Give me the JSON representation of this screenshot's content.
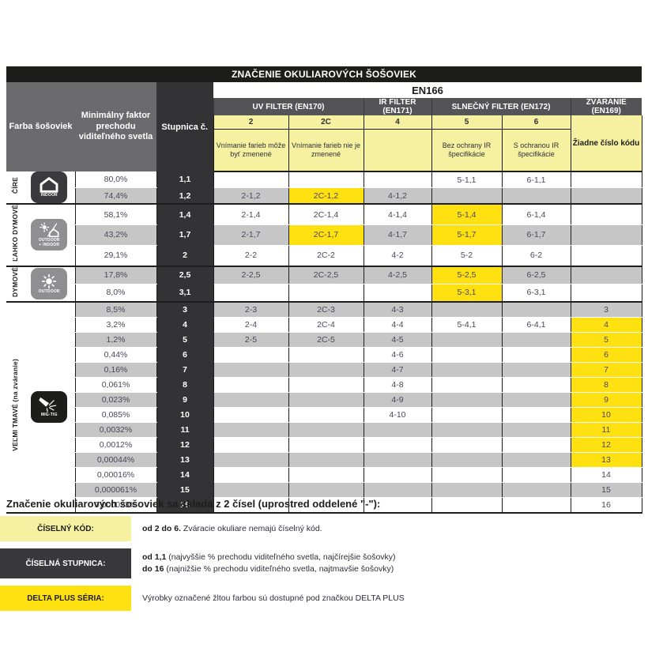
{
  "title": "ZNAČENIE OKULIAROVÝCH ŠOŠOVIEK",
  "standard": "EN166",
  "header": {
    "farba": "Farba šošoviek",
    "faktor": "Minimálny faktor prechodu viditeľného svetla",
    "stupnica": "Stupnica č.",
    "uv_filter": "UV FILTER (EN170)",
    "ir_filter": "IR FILTER (EN171)",
    "sun_filter": "SLNEČNÝ FILTER (EN172)",
    "welding": "ZVÁRANIE (EN169)",
    "code2": "2",
    "code2c": "2C",
    "code4": "4",
    "code5": "5",
    "code6": "6",
    "desc2": "Vnímanie farieb môže byť zmenené",
    "desc2c": "Vnímanie farieb nie je zmenené",
    "desc4": "",
    "desc5": "Bez ochrany IR špecifikácie",
    "desc6": "S ochranou IR špecifikácie",
    "welding_note": "Žiadne číslo kódu"
  },
  "colors": {
    "highlight_yellow": "#ffe112",
    "light_yellow": "#f6f1a1",
    "header_gray": "#6b6b6d",
    "group_header_gray": "#545456",
    "scale_dark": "#333335",
    "row_gray": "#c6c6c6",
    "black": "#1d1d1b"
  },
  "table": {
    "groups": [
      {
        "name": "ČÍRE",
        "icon": "indoor-icon",
        "icon_label": "INDOOR",
        "icon_bg": "#3a3a3c",
        "rows": [
          {
            "pct": "80,0%",
            "scale": "1,1",
            "c2": "",
            "c2c": "",
            "c4": "",
            "c5": "5-1,1",
            "c6": "6-1,1",
            "zv": "",
            "hl": []
          },
          {
            "pct": "74,4%",
            "scale": "1,2",
            "c2": "2-1,2",
            "c2c": "2C-1,2",
            "c4": "4-1,2",
            "c5": "",
            "c6": "",
            "zv": "",
            "hl": [
              "c2c"
            ]
          }
        ]
      },
      {
        "name": "ĽAHKO DYMOVÉ",
        "icon": "outdoor-indoor-icon",
        "icon_label": "OUTDOOR\n+ INDOOR",
        "icon_bg": "#8f8f91",
        "rows": [
          {
            "pct": "58,1%",
            "scale": "1,4",
            "c2": "2-1,4",
            "c2c": "2C-1,4",
            "c4": "4-1,4",
            "c5": "5-1,4",
            "c6": "6-1,4",
            "zv": "",
            "hl": [
              "c5"
            ]
          },
          {
            "pct": "43,2%",
            "scale": "1,7",
            "c2": "2-1,7",
            "c2c": "2C-1,7",
            "c4": "4-1,7",
            "c5": "5-1,7",
            "c6": "6-1,7",
            "zv": "",
            "hl": [
              "c2c",
              "c5"
            ]
          },
          {
            "pct": "29,1%",
            "scale": "2",
            "c2": "2-2",
            "c2c": "2C-2",
            "c4": "4-2",
            "c5": "5-2",
            "c6": "6-2",
            "zv": "",
            "hl": []
          }
        ]
      },
      {
        "name": "DYMOVÉ",
        "icon": "outdoor-icon",
        "icon_label": "OUTDOOR",
        "icon_bg": "#8f8f91",
        "rows": [
          {
            "pct": "17,8%",
            "scale": "2,5",
            "c2": "2-2,5",
            "c2c": "2C-2,5",
            "c4": "4-2,5",
            "c5": "5-2,5",
            "c6": "6-2,5",
            "zv": "",
            "hl": [
              "c5"
            ]
          },
          {
            "pct": "8,0%",
            "scale": "3,1",
            "c2": "",
            "c2c": "",
            "c4": "",
            "c5": "5-3,1",
            "c6": "6-3,1",
            "zv": "",
            "hl": [
              "c5"
            ]
          }
        ]
      },
      {
        "name": "VEĽMI TMAVÉ (na zváranie)",
        "icon": "welding-icon",
        "icon_label": "MIG-TIG",
        "icon_bg": "#1d1d1b",
        "rows": [
          {
            "pct": "8,5%",
            "scale": "3",
            "c2": "2-3",
            "c2c": "2C-3",
            "c4": "4-3",
            "c5": "",
            "c6": "",
            "zv": "3",
            "hl": []
          },
          {
            "pct": "3,2%",
            "scale": "4",
            "c2": "2-4",
            "c2c": "2C-4",
            "c4": "4-4",
            "c5": "5-4,1",
            "c6": "6-4,1",
            "zv": "4",
            "hl": [
              "zv"
            ]
          },
          {
            "pct": "1,2%",
            "scale": "5",
            "c2": "2-5",
            "c2c": "2C-5",
            "c4": "4-5",
            "c5": "",
            "c6": "",
            "zv": "5",
            "hl": [
              "zv"
            ]
          },
          {
            "pct": "0,44%",
            "scale": "6",
            "c2": "",
            "c2c": "",
            "c4": "4-6",
            "c5": "",
            "c6": "",
            "zv": "6",
            "hl": [
              "zv"
            ]
          },
          {
            "pct": "0,16%",
            "scale": "7",
            "c2": "",
            "c2c": "",
            "c4": "4-7",
            "c5": "",
            "c6": "",
            "zv": "7",
            "hl": [
              "zv"
            ]
          },
          {
            "pct": "0,061%",
            "scale": "8",
            "c2": "",
            "c2c": "",
            "c4": "4-8",
            "c5": "",
            "c6": "",
            "zv": "8",
            "hl": [
              "zv"
            ]
          },
          {
            "pct": "0,023%",
            "scale": "9",
            "c2": "",
            "c2c": "",
            "c4": "4-9",
            "c5": "",
            "c6": "",
            "zv": "9",
            "hl": [
              "zv"
            ]
          },
          {
            "pct": "0,085%",
            "scale": "10",
            "c2": "",
            "c2c": "",
            "c4": "4-10",
            "c5": "",
            "c6": "",
            "zv": "10",
            "hl": [
              "zv"
            ]
          },
          {
            "pct": "0,0032%",
            "scale": "11",
            "c2": "",
            "c2c": "",
            "c4": "",
            "c5": "",
            "c6": "",
            "zv": "11",
            "hl": [
              "zv"
            ]
          },
          {
            "pct": "0,0012%",
            "scale": "12",
            "c2": "",
            "c2c": "",
            "c4": "",
            "c5": "",
            "c6": "",
            "zv": "12",
            "hl": [
              "zv"
            ]
          },
          {
            "pct": "0,00044%",
            "scale": "13",
            "c2": "",
            "c2c": "",
            "c4": "",
            "c5": "",
            "c6": "",
            "zv": "13",
            "hl": [
              "zv"
            ]
          },
          {
            "pct": "0,00016%",
            "scale": "14",
            "c2": "",
            "c2c": "",
            "c4": "",
            "c5": "",
            "c6": "",
            "zv": "14",
            "hl": []
          },
          {
            "pct": "0,000061%",
            "scale": "15",
            "c2": "",
            "c2c": "",
            "c4": "",
            "c5": "",
            "c6": "",
            "zv": "15",
            "hl": []
          },
          {
            "pct": "0,000023%",
            "scale": "16",
            "c2": "",
            "c2c": "",
            "c4": "",
            "c5": "",
            "c6": "",
            "zv": "16",
            "hl": []
          }
        ]
      }
    ]
  },
  "footer": {
    "heading": "Značenie okuliarových šošoviek sa skladá z 2 čísel (uprostred oddelené \"-\"):",
    "items": [
      {
        "label": "ČÍSELNÝ KÓD:",
        "bold": "od 2 do 6.",
        "rest": " Zváracie okuliare nemajú číselný kód."
      },
      {
        "label": "ČÍSELNÁ STUPNICA:",
        "line1_bold": "od 1,1",
        "line1_rest": " (najvyššie % prechodu viditeľného svetla, najčírejšie šošovky)",
        "line2_bold": "do 16",
        "line2_rest": " (najnižšie % prechodu viditeľného svetla, najtmavšie šošovky)"
      },
      {
        "label": "DELTA PLUS SÉRIA:",
        "text": "Výrobky označené žltou farbou sú dostupné pod značkou DELTA PLUS"
      }
    ]
  }
}
